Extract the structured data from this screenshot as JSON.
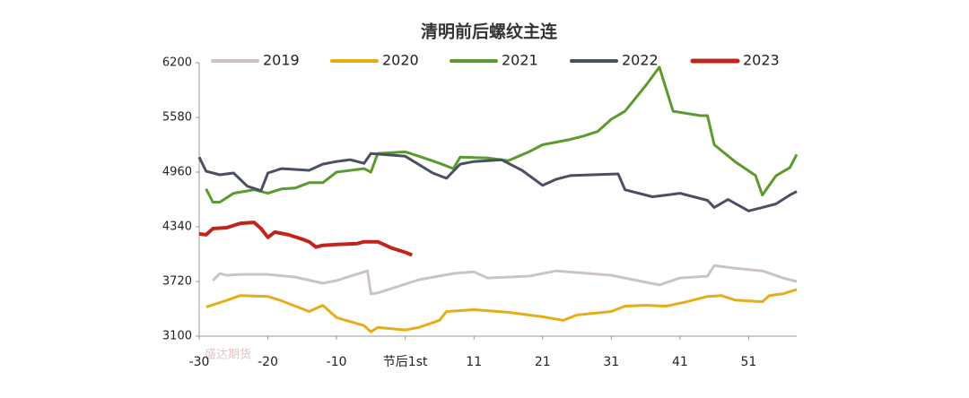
{
  "chart_data": {
    "type": "line",
    "title": "清明前后螺纹主连",
    "watermark": "盛达期货",
    "xlim": [
      -30,
      57
    ],
    "ylim": [
      3100,
      6200
    ],
    "yticks": [
      3100,
      3720,
      4340,
      4960,
      5580,
      6200
    ],
    "xticks": [
      -30,
      -20,
      -10,
      {
        "value": 0,
        "label": "节后1st"
      },
      {
        "value": 10,
        "label": "11"
      },
      {
        "value": 20,
        "label": "21"
      },
      {
        "value": 30,
        "label": "31"
      },
      {
        "value": 40,
        "label": "41"
      },
      {
        "value": 50,
        "label": "51"
      }
    ],
    "series": [
      {
        "name": "2019",
        "color": "#cdc3c3",
        "x": [
          -28,
          -27,
          -26,
          -24,
          -20,
          -16,
          -12,
          -10,
          -8,
          -5.5,
          -5,
          -4,
          2,
          7,
          10,
          12,
          18,
          22,
          30,
          37,
          40,
          44,
          45,
          48,
          52,
          55,
          57
        ],
        "values": [
          3730,
          3810,
          3790,
          3800,
          3800,
          3770,
          3700,
          3730,
          3780,
          3840,
          3580,
          3590,
          3740,
          3810,
          3830,
          3760,
          3780,
          3840,
          3790,
          3680,
          3760,
          3780,
          3900,
          3870,
          3840,
          3760,
          3720
        ]
      },
      {
        "name": "2020",
        "color": "#e5ad19",
        "x": [
          -29,
          -27,
          -24,
          -20,
          -18,
          -14,
          -12,
          -10,
          -6,
          -5,
          -4,
          0,
          2,
          5,
          6,
          10,
          15,
          20,
          23,
          25,
          30,
          32,
          35,
          38,
          41,
          44,
          46,
          48,
          52,
          53,
          55,
          57
        ],
        "values": [
          3430,
          3480,
          3560,
          3550,
          3500,
          3380,
          3450,
          3310,
          3220,
          3150,
          3200,
          3170,
          3200,
          3280,
          3380,
          3400,
          3370,
          3320,
          3280,
          3340,
          3380,
          3440,
          3450,
          3440,
          3490,
          3550,
          3560,
          3510,
          3490,
          3560,
          3580,
          3630
        ]
      },
      {
        "name": "2021",
        "color": "#5a9a2f",
        "x": [
          -29,
          -28,
          -27,
          -25,
          -22,
          -20,
          -18,
          -16,
          -14,
          -12,
          -10,
          -6,
          -5,
          -4,
          0,
          2,
          5,
          7,
          8,
          12,
          15,
          18,
          20,
          24,
          26,
          28,
          30,
          32,
          35,
          37,
          39,
          43,
          44,
          45,
          48,
          51,
          52,
          54,
          56,
          57
        ],
        "values": [
          4770,
          4620,
          4620,
          4720,
          4760,
          4720,
          4770,
          4780,
          4840,
          4840,
          4960,
          5000,
          4960,
          5170,
          5190,
          5140,
          5060,
          5000,
          5130,
          5120,
          5090,
          5190,
          5270,
          5330,
          5370,
          5420,
          5560,
          5650,
          5940,
          6150,
          5650,
          5600,
          5600,
          5270,
          5080,
          4920,
          4700,
          4920,
          5010,
          5160
        ]
      },
      {
        "name": "2022",
        "color": "#4a5063",
        "x": [
          -30,
          -29,
          -27,
          -25,
          -23,
          -21,
          -20,
          -18,
          -14,
          -12,
          -10,
          -8,
          -6,
          -5,
          0,
          4,
          6,
          8,
          10,
          14,
          17,
          20,
          22,
          24,
          31,
          32,
          36,
          38,
          40,
          44,
          45,
          47,
          50,
          52,
          54,
          56,
          57
        ],
        "values": [
          5130,
          4970,
          4930,
          4950,
          4800,
          4750,
          4950,
          5000,
          4980,
          5050,
          5080,
          5100,
          5060,
          5170,
          5140,
          4950,
          4890,
          5050,
          5080,
          5100,
          4980,
          4810,
          4880,
          4920,
          4940,
          4760,
          4680,
          4700,
          4720,
          4640,
          4560,
          4650,
          4520,
          4560,
          4600,
          4700,
          4740
        ]
      },
      {
        "name": "2023",
        "color": "#c0251d",
        "x": [
          -30,
          -29,
          -28,
          -26,
          -24,
          -22,
          -21,
          -20,
          -19,
          -17,
          -15,
          -14,
          -13,
          -12,
          -10,
          -7,
          -6,
          -4,
          -2,
          0,
          1
        ],
        "values": [
          4260,
          4250,
          4320,
          4330,
          4380,
          4390,
          4320,
          4220,
          4280,
          4250,
          4200,
          4170,
          4110,
          4130,
          4140,
          4150,
          4170,
          4170,
          4100,
          4050,
          4020
        ]
      }
    ]
  }
}
